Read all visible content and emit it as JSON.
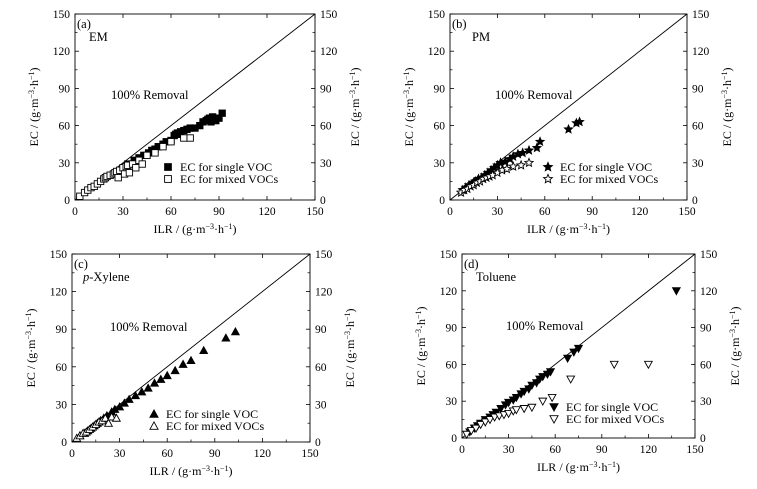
{
  "figure": {
    "ylabel_main": "EC / (g·m",
    "ylabel_paren_close": ")",
    "unit_exp_m": "−3",
    "unit_dot_h": "·h",
    "unit_exp_h": "−1",
    "xlabel_main": "ILR / (g·m"
  },
  "chart_data": [
    {
      "type": "scatter",
      "panel_label": "(a)",
      "title": "EM",
      "title_prefix": "",
      "title_italic": false,
      "annotation": "100% Removal",
      "xlabel": "ILR / (g·m⁻³·h⁻¹)",
      "ylabel": "EC / (g·m⁻³·h⁻¹)",
      "xlim": [
        0,
        150
      ],
      "ylim": [
        0,
        150
      ],
      "ticks": [
        0,
        30,
        60,
        90,
        120,
        150
      ],
      "ticks_x": [
        "0",
        "30",
        "60",
        "90",
        "120",
        "150"
      ],
      "ticks_y": [
        "0",
        "30",
        "60",
        "90",
        "120",
        "150"
      ],
      "reference_line": "y = x",
      "series": [
        {
          "name": "EC for single VOC",
          "marker": "square-filled",
          "x": [
            33,
            37,
            40,
            43,
            46,
            48,
            50,
            52,
            55,
            57,
            60,
            62,
            63,
            64,
            65,
            66,
            68,
            70,
            72,
            75,
            78,
            80,
            82,
            83,
            84,
            85,
            86,
            87,
            88,
            90,
            92
          ],
          "y": [
            29,
            32,
            34,
            36,
            38,
            40,
            41,
            43,
            45,
            47,
            48,
            52,
            53,
            54,
            53,
            55,
            56,
            57,
            58,
            58,
            60,
            63,
            64,
            65,
            66,
            63,
            67,
            65,
            64,
            66,
            70
          ]
        },
        {
          "name": "EC for mixed VOCs",
          "marker": "square-open",
          "x": [
            3,
            6,
            8,
            10,
            12,
            14,
            16,
            18,
            19,
            20,
            22,
            24,
            25,
            26,
            27,
            28,
            30,
            31,
            32,
            33,
            34,
            36,
            38,
            40,
            42,
            45,
            50,
            55,
            60,
            68,
            72
          ],
          "y": [
            3,
            6,
            8,
            10,
            11,
            13,
            15,
            17,
            18,
            19,
            20,
            21,
            22,
            23,
            18,
            24,
            26,
            21,
            27,
            28,
            22,
            29,
            26,
            32,
            29,
            36,
            38,
            43,
            47,
            50,
            50
          ]
        }
      ]
    },
    {
      "type": "scatter",
      "panel_label": "(b)",
      "title": "PM",
      "title_prefix": "",
      "title_italic": false,
      "annotation": "100% Removal",
      "xlabel": "ILR / (g·m⁻³·h⁻¹)",
      "ylabel": "EC / (g·m⁻³·h⁻¹)",
      "xlim": [
        0,
        150
      ],
      "ylim": [
        0,
        150
      ],
      "ticks": [
        0,
        30,
        60,
        90,
        120,
        150
      ],
      "ticks_x": [
        "0",
        "30",
        "60",
        "90",
        "120",
        "150"
      ],
      "ticks_y": [
        "0",
        "30",
        "60",
        "90",
        "120",
        "150"
      ],
      "reference_line": "y = x",
      "series": [
        {
          "name": "EC for single VOC",
          "marker": "star-filled",
          "x": [
            8,
            10,
            12,
            14,
            15,
            16,
            18,
            20,
            22,
            24,
            26,
            28,
            30,
            32,
            35,
            38,
            40,
            43,
            46,
            50,
            55,
            57,
            75,
            80,
            82
          ],
          "y": [
            8,
            10,
            12,
            13,
            14,
            15,
            17,
            18,
            20,
            22,
            24,
            26,
            28,
            30,
            31,
            33,
            35,
            37,
            38,
            40,
            42,
            47,
            57,
            62,
            63
          ]
        },
        {
          "name": "EC for mixed VOCs",
          "marker": "star-open",
          "x": [
            7,
            9,
            11,
            13,
            15,
            17,
            19,
            21,
            23,
            25,
            27,
            30,
            33,
            36,
            40,
            45,
            50
          ],
          "y": [
            6,
            8,
            9,
            11,
            12,
            14,
            15,
            17,
            18,
            19,
            20,
            22,
            24,
            25,
            27,
            28,
            30
          ]
        }
      ]
    },
    {
      "type": "scatter",
      "panel_label": "(c)",
      "title": "Xylene",
      "title_prefix": "p-",
      "title_italic": true,
      "annotation": "100% Removal",
      "xlabel": "ILR / (g·m⁻³·h⁻¹)",
      "ylabel": "EC / (g·m⁻³·h⁻¹)",
      "xlim": [
        0,
        150
      ],
      "ylim": [
        0,
        150
      ],
      "ticks": [
        0,
        30,
        60,
        90,
        120,
        150
      ],
      "ticks_x": [
        "0",
        "30",
        "60",
        "90",
        "120",
        "150"
      ],
      "ticks_y": [
        "0",
        "30",
        "60",
        "90",
        "120",
        "150"
      ],
      "reference_line": "y = x",
      "series": [
        {
          "name": "EC for single VOC",
          "marker": "triangle-up-filled",
          "x": [
            5,
            8,
            10,
            12,
            14,
            16,
            18,
            20,
            22,
            25,
            27,
            30,
            33,
            36,
            40,
            44,
            48,
            52,
            56,
            60,
            65,
            70,
            75,
            83,
            97,
            103
          ],
          "y": [
            5,
            7,
            9,
            11,
            13,
            15,
            17,
            19,
            21,
            24,
            26,
            28,
            31,
            34,
            37,
            40,
            43,
            47,
            50,
            53,
            57,
            62,
            65,
            73,
            83,
            88
          ]
        },
        {
          "name": "EC for mixed VOCs",
          "marker": "triangle-up-open",
          "x": [
            3,
            5,
            7,
            9,
            11,
            13,
            15,
            17,
            19,
            21,
            23,
            25,
            28
          ],
          "y": [
            3,
            5,
            7,
            8,
            10,
            12,
            14,
            16,
            17,
            19,
            15,
            20,
            19
          ]
        }
      ]
    },
    {
      "type": "scatter",
      "panel_label": "(d)",
      "title": "Toluene",
      "title_prefix": "",
      "title_italic": false,
      "annotation": "100% Removal",
      "xlabel": "ILR / (g·m⁻³·h⁻¹)",
      "ylabel": "EC / (g·m⁻³·h⁻¹)",
      "xlim": [
        0,
        150
      ],
      "ylim": [
        0,
        150
      ],
      "ticks": [
        0,
        30,
        60,
        90,
        120,
        150
      ],
      "ticks_x": [
        "0",
        "30",
        "60",
        "90",
        "120",
        "150"
      ],
      "ticks_y": [
        "0",
        "30",
        "60",
        "90",
        "120",
        "150"
      ],
      "reference_line": "y = x",
      "series": [
        {
          "name": "EC for single VOC",
          "marker": "triangle-down-filled",
          "x": [
            5,
            8,
            10,
            12,
            15,
            18,
            20,
            22,
            25,
            28,
            30,
            33,
            35,
            38,
            40,
            43,
            45,
            48,
            50,
            52,
            55,
            57,
            68,
            72,
            75,
            138
          ],
          "y": [
            5,
            8,
            10,
            12,
            15,
            17,
            19,
            21,
            24,
            27,
            29,
            31,
            33,
            36,
            38,
            40,
            43,
            45,
            48,
            50,
            52,
            54,
            65,
            70,
            73,
            120
          ]
        },
        {
          "name": "EC for mixed VOCs",
          "marker": "triangle-down-open",
          "x": [
            3,
            6,
            9,
            12,
            15,
            18,
            21,
            24,
            27,
            30,
            33,
            35,
            40,
            45,
            52,
            58,
            70,
            98,
            120
          ],
          "y": [
            3,
            6,
            8,
            11,
            13,
            15,
            17,
            18,
            19,
            20,
            22,
            23,
            24,
            25,
            30,
            33,
            48,
            60,
            60
          ]
        }
      ]
    }
  ]
}
